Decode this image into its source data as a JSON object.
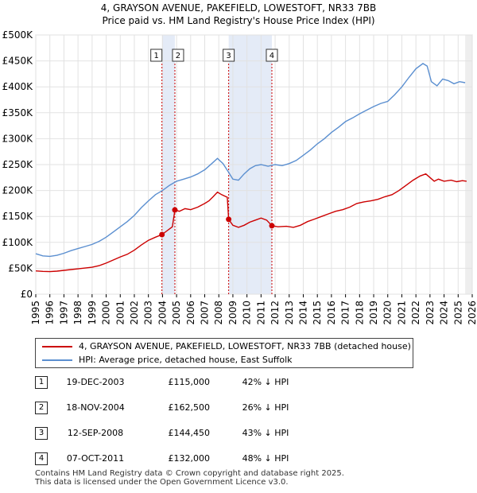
{
  "chart_data": {
    "type": "line",
    "title": "4, GRAYSON AVENUE, PAKEFIELD, LOWESTOFT, NR33 7BB",
    "subtitle": "Price paid vs. HM Land Registry's House Price Index (HPI)",
    "xlabel": "",
    "ylabel": "",
    "xlim": [
      1995,
      2026
    ],
    "ylim": [
      0,
      500000
    ],
    "x_ticks": [
      1995,
      1996,
      1997,
      1998,
      1999,
      2000,
      2001,
      2002,
      2003,
      2004,
      2005,
      2006,
      2007,
      2008,
      2009,
      2010,
      2011,
      2012,
      2013,
      2014,
      2015,
      2016,
      2017,
      2018,
      2019,
      2020,
      2021,
      2022,
      2023,
      2024,
      2025,
      2026
    ],
    "y_ticks": [
      {
        "value": 0,
        "label": "£0"
      },
      {
        "value": 50000,
        "label": "£50K"
      },
      {
        "value": 100000,
        "label": "£100K"
      },
      {
        "value": 150000,
        "label": "£150K"
      },
      {
        "value": 200000,
        "label": "£200K"
      },
      {
        "value": 250000,
        "label": "£250K"
      },
      {
        "value": 300000,
        "label": "£300K"
      },
      {
        "value": 350000,
        "label": "£350K"
      },
      {
        "value": 400000,
        "label": "£400K"
      },
      {
        "value": 450000,
        "label": "£450K"
      },
      {
        "value": 500000,
        "label": "£500K"
      }
    ],
    "grid": true,
    "shaded_periods": [
      [
        2003.96,
        2004.88
      ],
      [
        2008.7,
        2011.77
      ]
    ],
    "series": [
      {
        "name": "4, GRAYSON AVENUE, PAKEFIELD, LOWESTOFT, NR33 7BB (detached house)",
        "color": "#cc0000",
        "points": [
          [
            1995.0,
            45000
          ],
          [
            1995.5,
            44000
          ],
          [
            1996.0,
            43500
          ],
          [
            1996.5,
            44500
          ],
          [
            1997.0,
            46000
          ],
          [
            1997.5,
            47500
          ],
          [
            1998.0,
            49000
          ],
          [
            1998.5,
            50500
          ],
          [
            1999.0,
            52000
          ],
          [
            1999.5,
            55000
          ],
          [
            2000.0,
            60000
          ],
          [
            2000.5,
            66000
          ],
          [
            2001.0,
            72000
          ],
          [
            2001.5,
            77000
          ],
          [
            2002.0,
            85000
          ],
          [
            2002.5,
            95000
          ],
          [
            2003.0,
            104000
          ],
          [
            2003.5,
            110000
          ],
          [
            2003.96,
            115000
          ],
          [
            2004.3,
            122000
          ],
          [
            2004.7,
            130000
          ],
          [
            2004.88,
            162500
          ],
          [
            2005.2,
            160000
          ],
          [
            2005.6,
            165000
          ],
          [
            2006.0,
            163000
          ],
          [
            2006.5,
            168000
          ],
          [
            2007.0,
            175000
          ],
          [
            2007.3,
            180000
          ],
          [
            2007.6,
            188000
          ],
          [
            2007.9,
            197000
          ],
          [
            2008.2,
            192000
          ],
          [
            2008.6,
            187000
          ],
          [
            2008.7,
            144450
          ],
          [
            2009.0,
            133000
          ],
          [
            2009.4,
            129000
          ],
          [
            2009.8,
            133000
          ],
          [
            2010.2,
            139000
          ],
          [
            2010.6,
            143000
          ],
          [
            2011.0,
            147000
          ],
          [
            2011.4,
            143000
          ],
          [
            2011.77,
            132000
          ],
          [
            2012.2,
            130000
          ],
          [
            2012.8,
            131000
          ],
          [
            2013.3,
            129000
          ],
          [
            2013.8,
            133000
          ],
          [
            2014.3,
            140000
          ],
          [
            2014.8,
            145000
          ],
          [
            2015.3,
            150000
          ],
          [
            2015.8,
            155000
          ],
          [
            2016.3,
            160000
          ],
          [
            2016.8,
            163000
          ],
          [
            2017.3,
            168000
          ],
          [
            2017.8,
            175000
          ],
          [
            2018.3,
            178000
          ],
          [
            2018.8,
            180000
          ],
          [
            2019.3,
            183000
          ],
          [
            2019.8,
            188000
          ],
          [
            2020.3,
            192000
          ],
          [
            2020.8,
            200000
          ],
          [
            2021.3,
            210000
          ],
          [
            2021.8,
            220000
          ],
          [
            2022.3,
            228000
          ],
          [
            2022.7,
            232000
          ],
          [
            2023.0,
            225000
          ],
          [
            2023.3,
            218000
          ],
          [
            2023.6,
            222000
          ],
          [
            2024.0,
            218000
          ],
          [
            2024.5,
            220000
          ],
          [
            2024.9,
            217000
          ],
          [
            2025.3,
            219000
          ],
          [
            2025.6,
            218000
          ]
        ]
      },
      {
        "name": "HPI: Average price, detached house, East Suffolk",
        "color": "#5b8fd0",
        "points": [
          [
            1995.0,
            78000
          ],
          [
            1995.5,
            74000
          ],
          [
            1996.0,
            73000
          ],
          [
            1996.5,
            75000
          ],
          [
            1997.0,
            79000
          ],
          [
            1997.5,
            84000
          ],
          [
            1998.0,
            88000
          ],
          [
            1998.5,
            92000
          ],
          [
            1999.0,
            96000
          ],
          [
            1999.5,
            102000
          ],
          [
            2000.0,
            110000
          ],
          [
            2000.5,
            120000
          ],
          [
            2001.0,
            130000
          ],
          [
            2001.5,
            140000
          ],
          [
            2002.0,
            152000
          ],
          [
            2002.5,
            167000
          ],
          [
            2003.0,
            180000
          ],
          [
            2003.5,
            192000
          ],
          [
            2004.0,
            200000
          ],
          [
            2004.5,
            210000
          ],
          [
            2005.0,
            218000
          ],
          [
            2005.5,
            222000
          ],
          [
            2006.0,
            226000
          ],
          [
            2006.5,
            232000
          ],
          [
            2007.0,
            240000
          ],
          [
            2007.5,
            252000
          ],
          [
            2007.9,
            262000
          ],
          [
            2008.3,
            252000
          ],
          [
            2008.7,
            235000
          ],
          [
            2009.0,
            222000
          ],
          [
            2009.4,
            220000
          ],
          [
            2009.8,
            232000
          ],
          [
            2010.2,
            242000
          ],
          [
            2010.6,
            248000
          ],
          [
            2011.0,
            250000
          ],
          [
            2011.5,
            247000
          ],
          [
            2012.0,
            250000
          ],
          [
            2012.5,
            248000
          ],
          [
            2013.0,
            252000
          ],
          [
            2013.5,
            258000
          ],
          [
            2014.0,
            268000
          ],
          [
            2014.5,
            278000
          ],
          [
            2015.0,
            290000
          ],
          [
            2015.5,
            300000
          ],
          [
            2016.0,
            312000
          ],
          [
            2016.5,
            322000
          ],
          [
            2017.0,
            333000
          ],
          [
            2017.5,
            340000
          ],
          [
            2018.0,
            348000
          ],
          [
            2018.5,
            355000
          ],
          [
            2019.0,
            362000
          ],
          [
            2019.5,
            368000
          ],
          [
            2020.0,
            372000
          ],
          [
            2020.5,
            385000
          ],
          [
            2021.0,
            400000
          ],
          [
            2021.5,
            418000
          ],
          [
            2022.0,
            435000
          ],
          [
            2022.5,
            445000
          ],
          [
            2022.8,
            440000
          ],
          [
            2023.1,
            410000
          ],
          [
            2023.5,
            402000
          ],
          [
            2023.9,
            415000
          ],
          [
            2024.3,
            412000
          ],
          [
            2024.7,
            406000
          ],
          [
            2025.1,
            410000
          ],
          [
            2025.5,
            408000
          ]
        ]
      }
    ],
    "sales": [
      {
        "num": "1",
        "x": 2003.96,
        "y": 115000
      },
      {
        "num": "2",
        "x": 2004.88,
        "y": 162500
      },
      {
        "num": "3",
        "x": 2008.7,
        "y": 144450
      },
      {
        "num": "4",
        "x": 2011.77,
        "y": 132000
      }
    ]
  },
  "legend": {
    "series1": "4, GRAYSON AVENUE, PAKEFIELD, LOWESTOFT, NR33 7BB (detached house)",
    "series2": "HPI: Average price, detached house, East Suffolk"
  },
  "sales_table": [
    {
      "num": "1",
      "date": "19-DEC-2003",
      "price": "£115,000",
      "hpi": "42% ↓ HPI"
    },
    {
      "num": "2",
      "date": "18-NOV-2004",
      "price": "£162,500",
      "hpi": "26% ↓ HPI"
    },
    {
      "num": "3",
      "date": "12-SEP-2008",
      "price": "£144,450",
      "hpi": "43% ↓ HPI"
    },
    {
      "num": "4",
      "date": "07-OCT-2011",
      "price": "£132,000",
      "hpi": "48% ↓ HPI"
    }
  ],
  "footer": {
    "line1": "Contains HM Land Registry data © Crown copyright and database right 2025.",
    "line2": "This data is licensed under the Open Government Licence v3.0."
  }
}
